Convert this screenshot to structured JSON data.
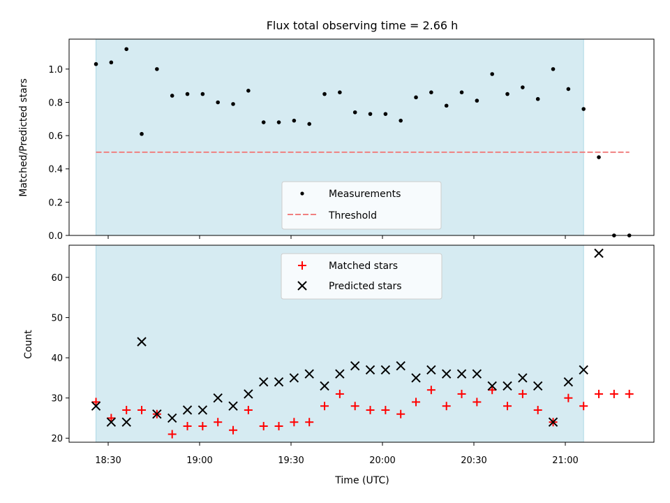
{
  "chart_data": {
    "title": "Flux total observing time = 2.66 h",
    "xlabel": "Time (UTC)",
    "x_ticks": [
      "18:30",
      "19:00",
      "19:30",
      "20:00",
      "20:30",
      "21:00"
    ],
    "shaded_region": {
      "start": "18:26",
      "end": "21:06",
      "color": "#add8e6"
    },
    "panels": [
      {
        "type": "scatter",
        "ylabel": "Matched/Predicted stars",
        "ylim": [
          0,
          1.18
        ],
        "yticks": [
          0.0,
          0.2,
          0.4,
          0.6,
          0.8,
          1.0
        ],
        "legend_position": "lower-center",
        "series": [
          {
            "name": "Measurements",
            "marker": "dot",
            "color": "#000000",
            "x": [
              "18:26",
              "18:31",
              "18:36",
              "18:41",
              "18:46",
              "18:51",
              "18:56",
              "19:01",
              "19:06",
              "19:11",
              "19:16",
              "19:21",
              "19:26",
              "19:31",
              "19:36",
              "19:41",
              "19:46",
              "19:51",
              "19:56",
              "20:01",
              "20:06",
              "20:11",
              "20:16",
              "20:21",
              "20:26",
              "20:31",
              "20:36",
              "20:41",
              "20:46",
              "20:51",
              "20:56",
              "21:01",
              "21:06",
              "21:11",
              "21:16",
              "21:21"
            ],
            "y": [
              1.03,
              1.04,
              1.12,
              0.61,
              1.0,
              0.84,
              0.85,
              0.85,
              0.8,
              0.79,
              0.87,
              0.68,
              0.68,
              0.69,
              0.67,
              0.85,
              0.86,
              0.74,
              0.73,
              0.73,
              0.69,
              0.83,
              0.86,
              0.78,
              0.86,
              0.81,
              0.97,
              0.85,
              0.89,
              0.82,
              1.0,
              0.88,
              0.76,
              0.47,
              0.0,
              0.0
            ]
          },
          {
            "name": "Threshold",
            "marker": "dashed-line",
            "color": "#f08080",
            "x": [
              "18:26",
              "21:21"
            ],
            "y": [
              0.5,
              0.5
            ]
          }
        ]
      },
      {
        "type": "scatter",
        "ylabel": "Count",
        "ylim": [
          19,
          68
        ],
        "yticks": [
          20,
          30,
          40,
          50,
          60
        ],
        "legend_position": "upper-center",
        "series": [
          {
            "name": "Matched stars",
            "marker": "plus",
            "color": "#ff0000",
            "x": [
              "18:26",
              "18:31",
              "18:36",
              "18:41",
              "18:46",
              "18:51",
              "18:56",
              "19:01",
              "19:06",
              "19:11",
              "19:16",
              "19:21",
              "19:26",
              "19:31",
              "19:36",
              "19:41",
              "19:46",
              "19:51",
              "19:56",
              "20:01",
              "20:06",
              "20:11",
              "20:16",
              "20:21",
              "20:26",
              "20:31",
              "20:36",
              "20:41",
              "20:46",
              "20:51",
              "20:56",
              "21:01",
              "21:06",
              "21:11",
              "21:16",
              "21:21"
            ],
            "y": [
              29,
              25,
              27,
              27,
              26,
              21,
              23,
              23,
              24,
              22,
              27,
              23,
              23,
              24,
              24,
              28,
              31,
              28,
              27,
              27,
              26,
              29,
              32,
              28,
              31,
              29,
              32,
              28,
              31,
              27,
              24,
              30,
              28,
              31,
              31,
              31
            ]
          },
          {
            "name": "Predicted stars",
            "marker": "x",
            "color": "#000000",
            "x": [
              "18:26",
              "18:31",
              "18:36",
              "18:41",
              "18:46",
              "18:51",
              "18:56",
              "19:01",
              "19:06",
              "19:11",
              "19:16",
              "19:21",
              "19:26",
              "19:31",
              "19:36",
              "19:41",
              "19:46",
              "19:51",
              "19:56",
              "20:01",
              "20:06",
              "20:11",
              "20:16",
              "20:21",
              "20:26",
              "20:31",
              "20:36",
              "20:41",
              "20:46",
              "20:51",
              "20:56",
              "21:01",
              "21:06",
              "21:11"
            ],
            "y": [
              28,
              24,
              24,
              44,
              26,
              25,
              27,
              27,
              30,
              28,
              31,
              34,
              34,
              35,
              36,
              33,
              36,
              38,
              37,
              37,
              38,
              35,
              37,
              36,
              36,
              36,
              33,
              33,
              35,
              33,
              24,
              34,
              37,
              66
            ]
          }
        ]
      }
    ]
  }
}
